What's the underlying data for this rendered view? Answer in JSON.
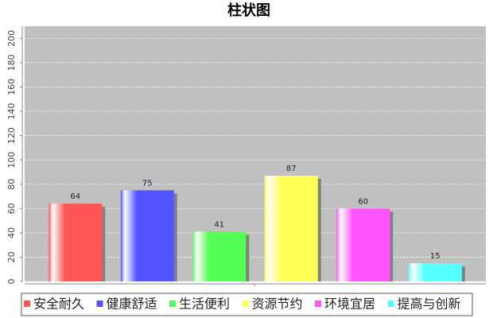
{
  "chart_data": {
    "type": "bar",
    "title": "柱状图",
    "categories": [
      null
    ],
    "series": [
      {
        "name": "安全耐久",
        "color": "#ff5555",
        "values": [
          64
        ]
      },
      {
        "name": "健康舒适",
        "color": "#5555ff",
        "values": [
          75
        ]
      },
      {
        "name": "生活便利",
        "color": "#55ff55",
        "values": [
          41
        ]
      },
      {
        "name": "资源节约",
        "color": "#ffff55",
        "values": [
          87
        ]
      },
      {
        "name": "环境宜居",
        "color": "#ff55ff",
        "values": [
          60
        ]
      },
      {
        "name": "提高与创新",
        "color": "#55ffff",
        "values": [
          15
        ]
      }
    ],
    "ylim": [
      0,
      210
    ],
    "yticks": [
      0,
      20,
      40,
      60,
      80,
      100,
      120,
      140,
      160,
      180,
      200
    ],
    "grid": true,
    "legend": "bottom"
  }
}
